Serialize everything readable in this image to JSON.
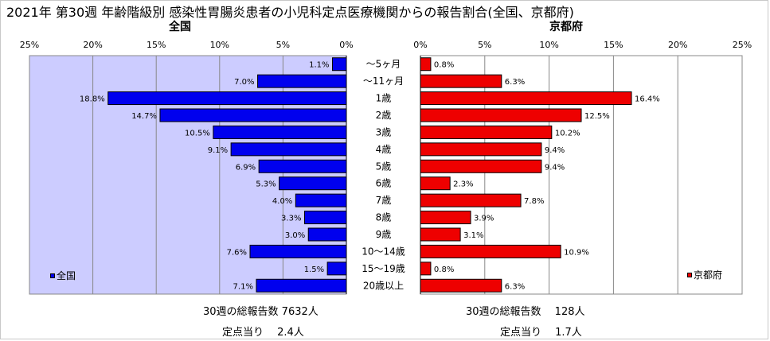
{
  "title": "2021年 第30週 年齢階級別 感染性胃腸炎患者の小児科定点医療機関からの報告割合(全国、京都府)",
  "chart_data": {
    "type": "bar",
    "orientation": "horizontal-back-to-back",
    "categories": [
      "～5ヶ月",
      "～11ヶ月",
      "1歳",
      "2歳",
      "3歳",
      "4歳",
      "5歳",
      "6歳",
      "7歳",
      "8歳",
      "9歳",
      "10～14歳",
      "15～19歳",
      "20歳以上"
    ],
    "series": [
      {
        "name": "全国",
        "panel_title": "全国",
        "color": "#0000ee",
        "values": [
          1.1,
          7.0,
          18.8,
          14.7,
          10.5,
          9.1,
          6.9,
          5.3,
          4.0,
          3.3,
          3.0,
          7.6,
          1.5,
          7.1
        ],
        "data_labels": [
          "1.1%",
          "7.0%",
          "18.8%",
          "14.7%",
          "10.5%",
          "9.1%",
          "6.9%",
          "5.3%",
          "4.0%",
          "3.3%",
          "3.0%",
          "7.6%",
          "1.5%",
          "7.1%"
        ]
      },
      {
        "name": "京都府",
        "panel_title": "京都府",
        "color": "#ee0000",
        "values": [
          0.8,
          6.3,
          16.4,
          12.5,
          10.2,
          9.4,
          9.4,
          2.3,
          7.8,
          3.9,
          3.1,
          10.9,
          0.8,
          6.3
        ],
        "data_labels": [
          "0.8%",
          "6.3%",
          "16.4%",
          "12.5%",
          "10.2%",
          "9.4%",
          "9.4%",
          "2.3%",
          "7.8%",
          "3.9%",
          "3.1%",
          "10.9%",
          "0.8%",
          "6.3%"
        ]
      }
    ],
    "xlim": [
      0,
      25
    ],
    "x_ticks": [
      0,
      5,
      10,
      15,
      20,
      25
    ],
    "tick_labels_left": [
      "0%",
      "5%",
      "10%",
      "15%",
      "20%",
      "25%"
    ],
    "tick_labels_right": [
      "0%",
      "5%",
      "10%",
      "15%",
      "20%",
      "25%"
    ],
    "grid": true,
    "plot_background": "#ccccff",
    "legend_placement": "bottom-left / bottom-right",
    "legend": [
      "全国",
      "京都府"
    ]
  },
  "footer": {
    "national_total": "30週の総報告数 7632人",
    "national_per_site": "定点当り　 2.4人",
    "kyoto_total": "30週の総報告数　 128人",
    "kyoto_per_site": "定点当り　 1.7人"
  }
}
